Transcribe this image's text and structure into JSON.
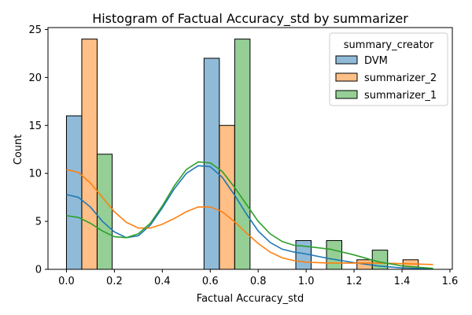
{
  "chart_data": {
    "type": "bar",
    "title": "Histogram of Factual Accuracy_std by summarizer",
    "xlabel": "Factual Accuracy_std",
    "ylabel": "Count",
    "xlim": [
      -0.077,
      1.61
    ],
    "ylim": [
      0,
      25.2
    ],
    "x_ticks": [
      0.0,
      0.2,
      0.4,
      0.6,
      0.8,
      1.0,
      1.2,
      1.4,
      1.6
    ],
    "x_tick_labels": [
      "0.0",
      "0.2",
      "0.4",
      "0.6",
      "0.8",
      "1.0",
      "1.2",
      "1.4",
      "1.6"
    ],
    "y_ticks": [
      0,
      5,
      10,
      15,
      20,
      25
    ],
    "y_tick_labels": [
      "0",
      "5",
      "10",
      "15",
      "20",
      "25"
    ],
    "legend": {
      "title": "summary_creator",
      "placement": "top-right"
    },
    "series": [
      {
        "name": "DVM",
        "color": "#1f77b4",
        "bars": [
          {
            "x0": 0.0,
            "x1": 0.064,
            "value": 16
          },
          {
            "x0": 0.574,
            "x1": 0.638,
            "value": 22
          },
          {
            "x0": 0.957,
            "x1": 1.021,
            "value": 3
          }
        ],
        "kde": [
          [
            0.0,
            7.8
          ],
          [
            0.05,
            7.5
          ],
          [
            0.1,
            6.5
          ],
          [
            0.15,
            5.0
          ],
          [
            0.2,
            3.9
          ],
          [
            0.25,
            3.3
          ],
          [
            0.3,
            3.5
          ],
          [
            0.35,
            4.6
          ],
          [
            0.4,
            6.4
          ],
          [
            0.45,
            8.4
          ],
          [
            0.5,
            10.0
          ],
          [
            0.55,
            10.8
          ],
          [
            0.6,
            10.7
          ],
          [
            0.65,
            9.6
          ],
          [
            0.7,
            7.8
          ],
          [
            0.75,
            5.8
          ],
          [
            0.8,
            4.0
          ],
          [
            0.85,
            2.8
          ],
          [
            0.9,
            2.1
          ],
          [
            0.95,
            1.8
          ],
          [
            1.0,
            1.6
          ],
          [
            1.1,
            1.1
          ],
          [
            1.2,
            0.7
          ],
          [
            1.3,
            0.35
          ],
          [
            1.4,
            0.15
          ],
          [
            1.53,
            0.05
          ]
        ]
      },
      {
        "name": "summarizer_2",
        "color": "#ff7f0e",
        "bars": [
          {
            "x0": 0.064,
            "x1": 0.128,
            "value": 24
          },
          {
            "x0": 0.638,
            "x1": 0.702,
            "value": 15
          },
          {
            "x0": 1.212,
            "x1": 1.276,
            "value": 1
          },
          {
            "x0": 1.404,
            "x1": 1.468,
            "value": 1
          }
        ],
        "kde": [
          [
            0.0,
            10.4
          ],
          [
            0.05,
            10.1
          ],
          [
            0.1,
            9.0
          ],
          [
            0.15,
            7.5
          ],
          [
            0.2,
            6.0
          ],
          [
            0.25,
            4.9
          ],
          [
            0.3,
            4.3
          ],
          [
            0.35,
            4.3
          ],
          [
            0.4,
            4.7
          ],
          [
            0.45,
            5.3
          ],
          [
            0.5,
            6.0
          ],
          [
            0.55,
            6.5
          ],
          [
            0.6,
            6.5
          ],
          [
            0.65,
            6.0
          ],
          [
            0.7,
            5.0
          ],
          [
            0.75,
            3.8
          ],
          [
            0.8,
            2.7
          ],
          [
            0.85,
            1.8
          ],
          [
            0.9,
            1.2
          ],
          [
            0.95,
            0.9
          ],
          [
            1.0,
            0.75
          ],
          [
            1.1,
            0.65
          ],
          [
            1.2,
            0.65
          ],
          [
            1.3,
            0.65
          ],
          [
            1.4,
            0.6
          ],
          [
            1.53,
            0.5
          ]
        ]
      },
      {
        "name": "summarizer_1",
        "color": "#2ca02c",
        "bars": [
          {
            "x0": 0.128,
            "x1": 0.191,
            "value": 12
          },
          {
            "x0": 0.702,
            "x1": 0.766,
            "value": 24
          },
          {
            "x0": 1.085,
            "x1": 1.149,
            "value": 3
          },
          {
            "x0": 1.276,
            "x1": 1.34,
            "value": 2
          }
        ],
        "kde": [
          [
            0.0,
            5.6
          ],
          [
            0.05,
            5.4
          ],
          [
            0.1,
            4.8
          ],
          [
            0.15,
            4.0
          ],
          [
            0.2,
            3.4
          ],
          [
            0.25,
            3.3
          ],
          [
            0.3,
            3.7
          ],
          [
            0.35,
            4.8
          ],
          [
            0.4,
            6.6
          ],
          [
            0.45,
            8.7
          ],
          [
            0.5,
            10.4
          ],
          [
            0.55,
            11.2
          ],
          [
            0.6,
            11.1
          ],
          [
            0.65,
            10.2
          ],
          [
            0.7,
            8.6
          ],
          [
            0.75,
            6.8
          ],
          [
            0.8,
            5.0
          ],
          [
            0.85,
            3.7
          ],
          [
            0.9,
            2.9
          ],
          [
            0.95,
            2.5
          ],
          [
            1.0,
            2.4
          ],
          [
            1.1,
            2.1
          ],
          [
            1.2,
            1.5
          ],
          [
            1.3,
            0.8
          ],
          [
            1.4,
            0.35
          ],
          [
            1.53,
            0.1
          ]
        ]
      }
    ]
  }
}
